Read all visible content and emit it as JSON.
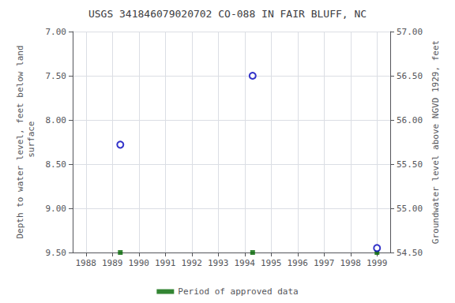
{
  "chart_data": {
    "type": "scatter",
    "title": "USGS 341846079020702 CO-088 IN FAIR BLUFF, NC",
    "y_label": "Depth to water level, feet below land\n surface",
    "y2_label": "Groundwater level above NGVD 1929, feet",
    "xlim": [
      1987.5,
      1999.5
    ],
    "xticks": [
      1988,
      1989,
      1990,
      1991,
      1992,
      1993,
      1994,
      1995,
      1996,
      1997,
      1998,
      1999
    ],
    "ylim": [
      9.5,
      7.0
    ],
    "yticks": [
      {
        "value": 7.0,
        "label": "7.00"
      },
      {
        "value": 7.5,
        "label": "7.50"
      },
      {
        "value": 8.0,
        "label": "8.00"
      },
      {
        "value": 8.5,
        "label": "8.50"
      },
      {
        "value": 9.0,
        "label": "9.00"
      },
      {
        "value": 9.5,
        "label": "9.50"
      }
    ],
    "y2lim": [
      54.5,
      57.0
    ],
    "y2ticks": [
      {
        "value": 57.0,
        "label": "57.00"
      },
      {
        "value": 56.5,
        "label": "56.50"
      },
      {
        "value": 56.0,
        "label": "56.00"
      },
      {
        "value": 55.5,
        "label": "55.50"
      },
      {
        "value": 55.0,
        "label": "55.00"
      },
      {
        "value": 54.5,
        "label": "54.50"
      }
    ],
    "grid": true,
    "legend": "bottom",
    "series": [
      {
        "name": "Period of approved data",
        "x": [
          1989.3,
          1994.3,
          1999.0
        ],
        "values": [
          9.5,
          9.5,
          9.5
        ],
        "color": "#006600",
        "marker": "square"
      },
      {
        "x": [
          1989.3,
          1994.3,
          1999.0
        ],
        "values": [
          8.28,
          7.5,
          9.45
        ],
        "color": "#0000bb",
        "marker": "open_circle"
      }
    ]
  }
}
